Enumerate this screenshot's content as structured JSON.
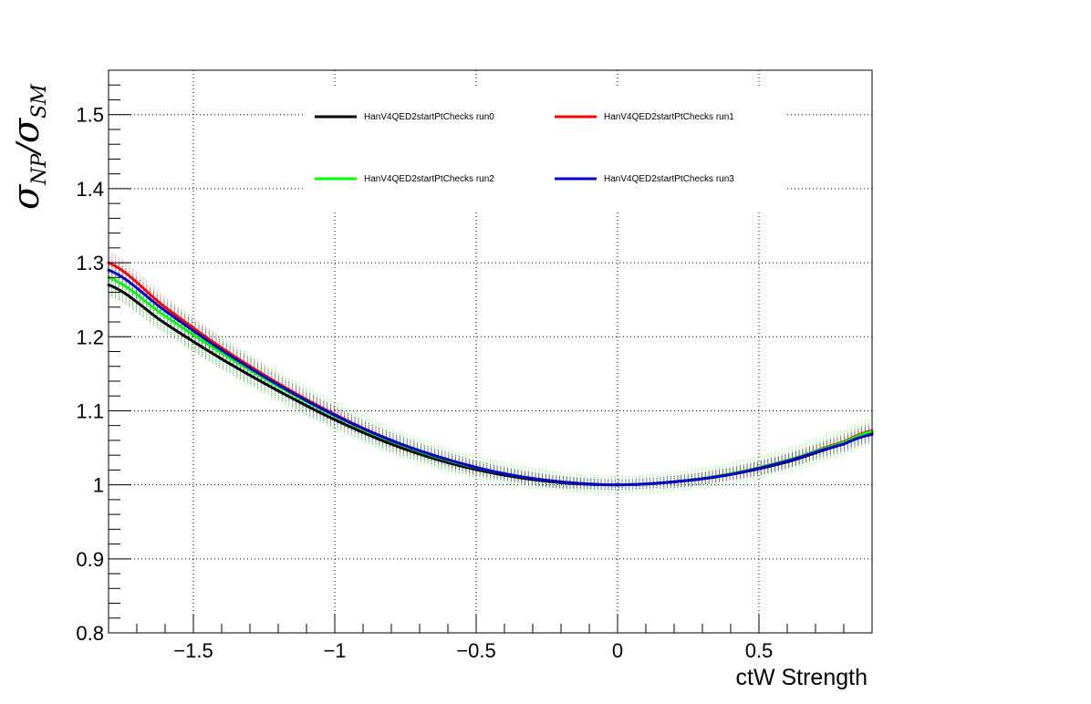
{
  "chart_data": {
    "type": "line",
    "title": "",
    "xlabel": "ctW Strength",
    "ylabel": {
      "main1": "σ",
      "sub1": "NP",
      "slash": "/",
      "main2": "σ",
      "sub2": "SM"
    },
    "xlim": [
      -1.8,
      0.9
    ],
    "ylim": [
      0.8,
      1.56
    ],
    "x_ticks": [
      -1.5,
      -1,
      -0.5,
      0,
      0.5
    ],
    "x_tick_labels": [
      "−1.5",
      "−1",
      "−0.5",
      "0",
      "0.5"
    ],
    "y_ticks": [
      0.8,
      0.9,
      1.0,
      1.1,
      1.2,
      1.3,
      1.4,
      1.5
    ],
    "y_tick_labels": [
      "0.8",
      "0.9",
      "1",
      "1.1",
      "1.2",
      "1.3",
      "1.4",
      "1.5"
    ],
    "grid": true,
    "legend_position": "top",
    "x": [
      -1.8,
      -1.6,
      -1.4,
      -1.2,
      -1.0,
      -0.8,
      -0.6,
      -0.4,
      -0.2,
      0.0,
      0.2,
      0.4,
      0.6,
      0.8,
      0.9
    ],
    "series": [
      {
        "name": "HanV4QED2startPtChecks run0",
        "color": "#000000",
        "values": [
          1.27,
          1.218,
          1.17,
          1.127,
          1.088,
          1.055,
          1.03,
          1.013,
          1.003,
          1.0,
          1.004,
          1.014,
          1.031,
          1.055,
          1.07
        ]
      },
      {
        "name": "HanV4QED2startPtChecks run1",
        "color": "#ff0000",
        "values": [
          1.3,
          1.24,
          1.185,
          1.137,
          1.095,
          1.06,
          1.034,
          1.015,
          1.004,
          1.0,
          1.004,
          1.015,
          1.033,
          1.058,
          1.073
        ]
      },
      {
        "name": "HanV4QED2startPtChecks run2",
        "color": "#00ff00",
        "values": [
          1.28,
          1.228,
          1.178,
          1.133,
          1.093,
          1.059,
          1.033,
          1.015,
          1.004,
          1.0,
          1.004,
          1.015,
          1.033,
          1.057,
          1.072
        ]
      },
      {
        "name": "HanV4QED2startPtChecks run3",
        "color": "#0000cc",
        "values": [
          1.29,
          1.235,
          1.182,
          1.135,
          1.094,
          1.06,
          1.034,
          1.015,
          1.004,
          1.0,
          1.004,
          1.014,
          1.032,
          1.055,
          1.068
        ]
      }
    ]
  }
}
